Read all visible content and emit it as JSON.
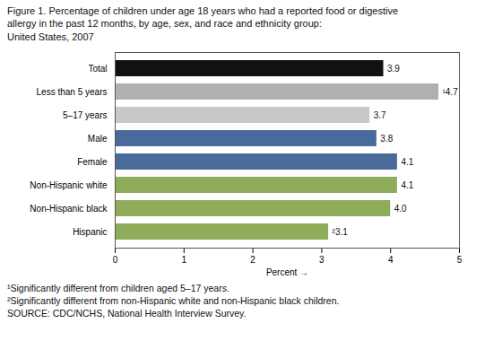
{
  "chart_data": {
    "type": "bar",
    "orientation": "horizontal",
    "title": "Figure 1. Percentage of children under age 18 years who had a reported food or digestive\nallergy in the past 12 months, by age, sex, and race and ethnicity group:\nUnited States, 2007",
    "categories": [
      "Total",
      "Less than 5 years",
      "5–17 years",
      "Male",
      "Female",
      "Non-Hispanic white",
      "Non-Hispanic black",
      "Hispanic"
    ],
    "values": [
      3.9,
      4.7,
      3.7,
      3.8,
      4.1,
      4.1,
      4.0,
      3.1
    ],
    "value_labels": [
      "3.9",
      "¹4.7",
      "3.7",
      "3.8",
      "4.1",
      "4.1",
      "4.0",
      "²3.1"
    ],
    "data_labels": true,
    "colors": [
      "#111111",
      "#b0b0b0",
      "#c8c8c8",
      "#4a6a9c",
      "#4a6a9c",
      "#8fac5a",
      "#8fac5a",
      "#8fac5a"
    ],
    "xlabel": "Percent",
    "xlim": [
      0,
      5
    ],
    "xticks": [
      0,
      1,
      2,
      3,
      4,
      5
    ],
    "grid": false,
    "annotations": [
      "¹Significantly different from children aged 5–17 years.",
      "²Significantly different from non-Hispanic white and non-Hispanic black children.",
      "SOURCE: CDC/NCHS, National Health Interview Survey."
    ]
  }
}
